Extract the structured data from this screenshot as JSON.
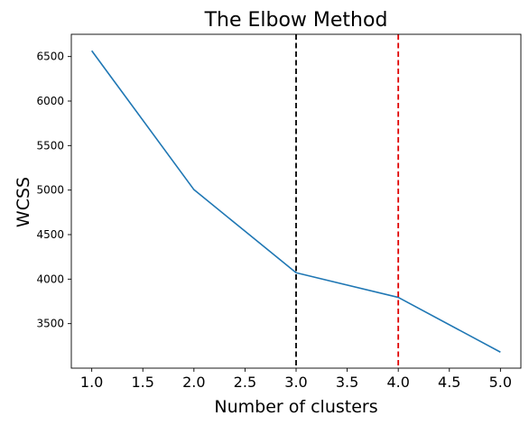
{
  "chart_data": {
    "type": "line",
    "title": "The Elbow Method",
    "xlabel": "Number of clusters",
    "ylabel": "WCSS",
    "xlim": [
      0.8,
      5.2
    ],
    "ylim": [
      3000,
      6750
    ],
    "xticks": [
      1.0,
      1.5,
      2.0,
      2.5,
      3.0,
      3.5,
      4.0,
      4.5,
      5.0
    ],
    "xtick_labels": [
      "1.0",
      "1.5",
      "2.0",
      "2.5",
      "3.0",
      "3.5",
      "4.0",
      "4.5",
      "5.0"
    ],
    "yticks": [
      3500,
      4000,
      4500,
      5000,
      5500,
      6000,
      6500
    ],
    "ytick_labels": [
      "3500",
      "4000",
      "4500",
      "5000",
      "5500",
      "6000",
      "6500"
    ],
    "grid": false,
    "series": [
      {
        "x": [
          1,
          2,
          3,
          4,
          5
        ],
        "y": [
          6565,
          5005,
          4072,
          3795,
          3180
        ],
        "color": "#1f77b4"
      }
    ],
    "vlines": [
      {
        "x": 3,
        "color": "#000000",
        "style": "dashed"
      },
      {
        "x": 4,
        "color": "#e00000",
        "style": "dashed"
      }
    ]
  }
}
